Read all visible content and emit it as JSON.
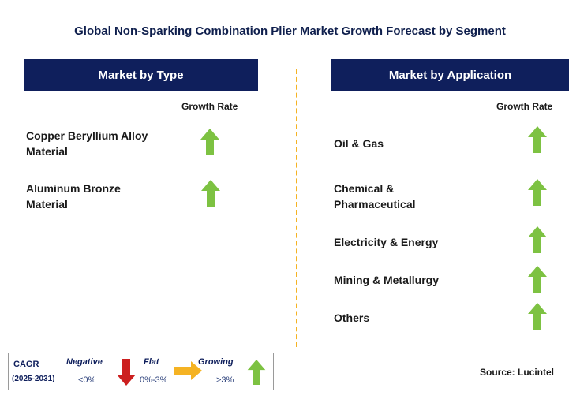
{
  "title": "Global Non-Sparking Combination Plier Market Growth Forecast by Segment",
  "left_panel": {
    "header": "Market by Type",
    "growth_rate_label": "Growth Rate",
    "items": [
      {
        "line1": "Copper Beryllium Alloy",
        "line2": "Material",
        "trend": "growing"
      },
      {
        "line1": "Aluminum Bronze",
        "line2": "Material",
        "trend": "growing"
      }
    ]
  },
  "right_panel": {
    "header": "Market by Application",
    "growth_rate_label": "Growth Rate",
    "items": [
      {
        "line1": "Oil & Gas",
        "line2": "",
        "trend": "growing"
      },
      {
        "line1": "Chemical &",
        "line2": "Pharmaceutical",
        "trend": "growing"
      },
      {
        "line1": "Electricity & Energy",
        "line2": "",
        "trend": "growing"
      },
      {
        "line1": "Mining & Metallurgy",
        "line2": "",
        "trend": "growing"
      },
      {
        "line1": "Others",
        "line2": "",
        "trend": "growing"
      }
    ]
  },
  "legend": {
    "cagr_label": "CAGR",
    "period": "(2025-2031)",
    "negative_label": "Negative",
    "negative_range": "<0%",
    "flat_label": "Flat",
    "flat_range": "0%-3%",
    "growing_label": "Growing",
    "growing_range": ">3%"
  },
  "source": "Source: Lucintel",
  "colors": {
    "header_bg": "#0f1f5c",
    "divider": "#f5b323",
    "growing_arrow": "#7dc242",
    "negative_arrow": "#cc1f1f",
    "flat_arrow": "#f5b323"
  },
  "icons": {
    "growing": "arrow-up-icon",
    "negative": "arrow-down-icon",
    "flat": "arrow-right-icon"
  }
}
